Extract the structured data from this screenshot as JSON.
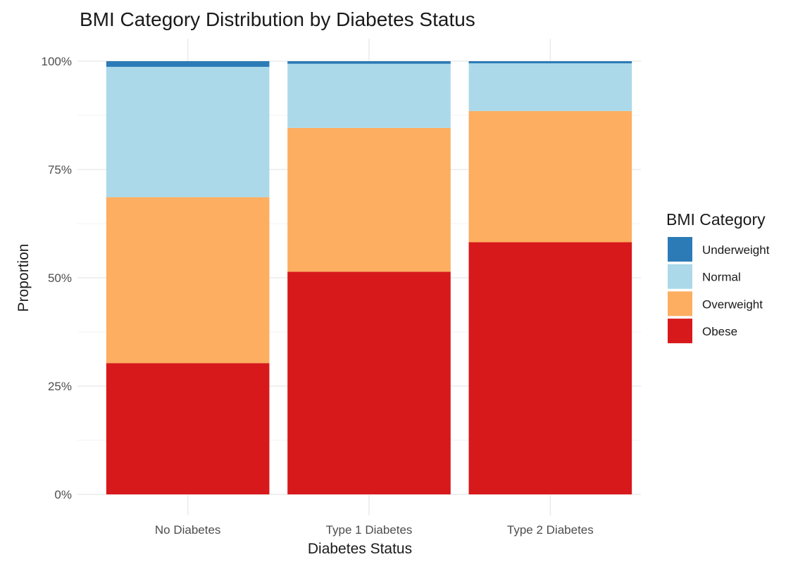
{
  "chart_data": {
    "type": "bar",
    "stacked": true,
    "percent": true,
    "title": "BMI Category Distribution by Diabetes Status",
    "xlabel": "Diabetes Status",
    "ylabel": "Proportion",
    "categories": [
      "No Diabetes",
      "Type 1 Diabetes",
      "Type 2 Diabetes"
    ],
    "ylim": [
      0,
      1
    ],
    "yticks": [
      0,
      0.25,
      0.5,
      0.75,
      1.0
    ],
    "ytick_labels": [
      "0%",
      "25%",
      "50%",
      "75%",
      "100%"
    ],
    "grid": true,
    "legend": {
      "title": "BMI Category",
      "position": "right"
    },
    "series": [
      {
        "name": "Obese",
        "color": "#D7191C",
        "values": [
          0.303,
          0.514,
          0.582
        ]
      },
      {
        "name": "Overweight",
        "color": "#FDAE61",
        "values": [
          0.383,
          0.332,
          0.303
        ]
      },
      {
        "name": "Normal",
        "color": "#ABD9E9",
        "values": [
          0.301,
          0.148,
          0.11
        ]
      },
      {
        "name": "Underweight",
        "color": "#2C7BB6",
        "values": [
          0.013,
          0.006,
          0.005
        ]
      }
    ],
    "legend_order": [
      "Underweight",
      "Normal",
      "Overweight",
      "Obese"
    ]
  }
}
